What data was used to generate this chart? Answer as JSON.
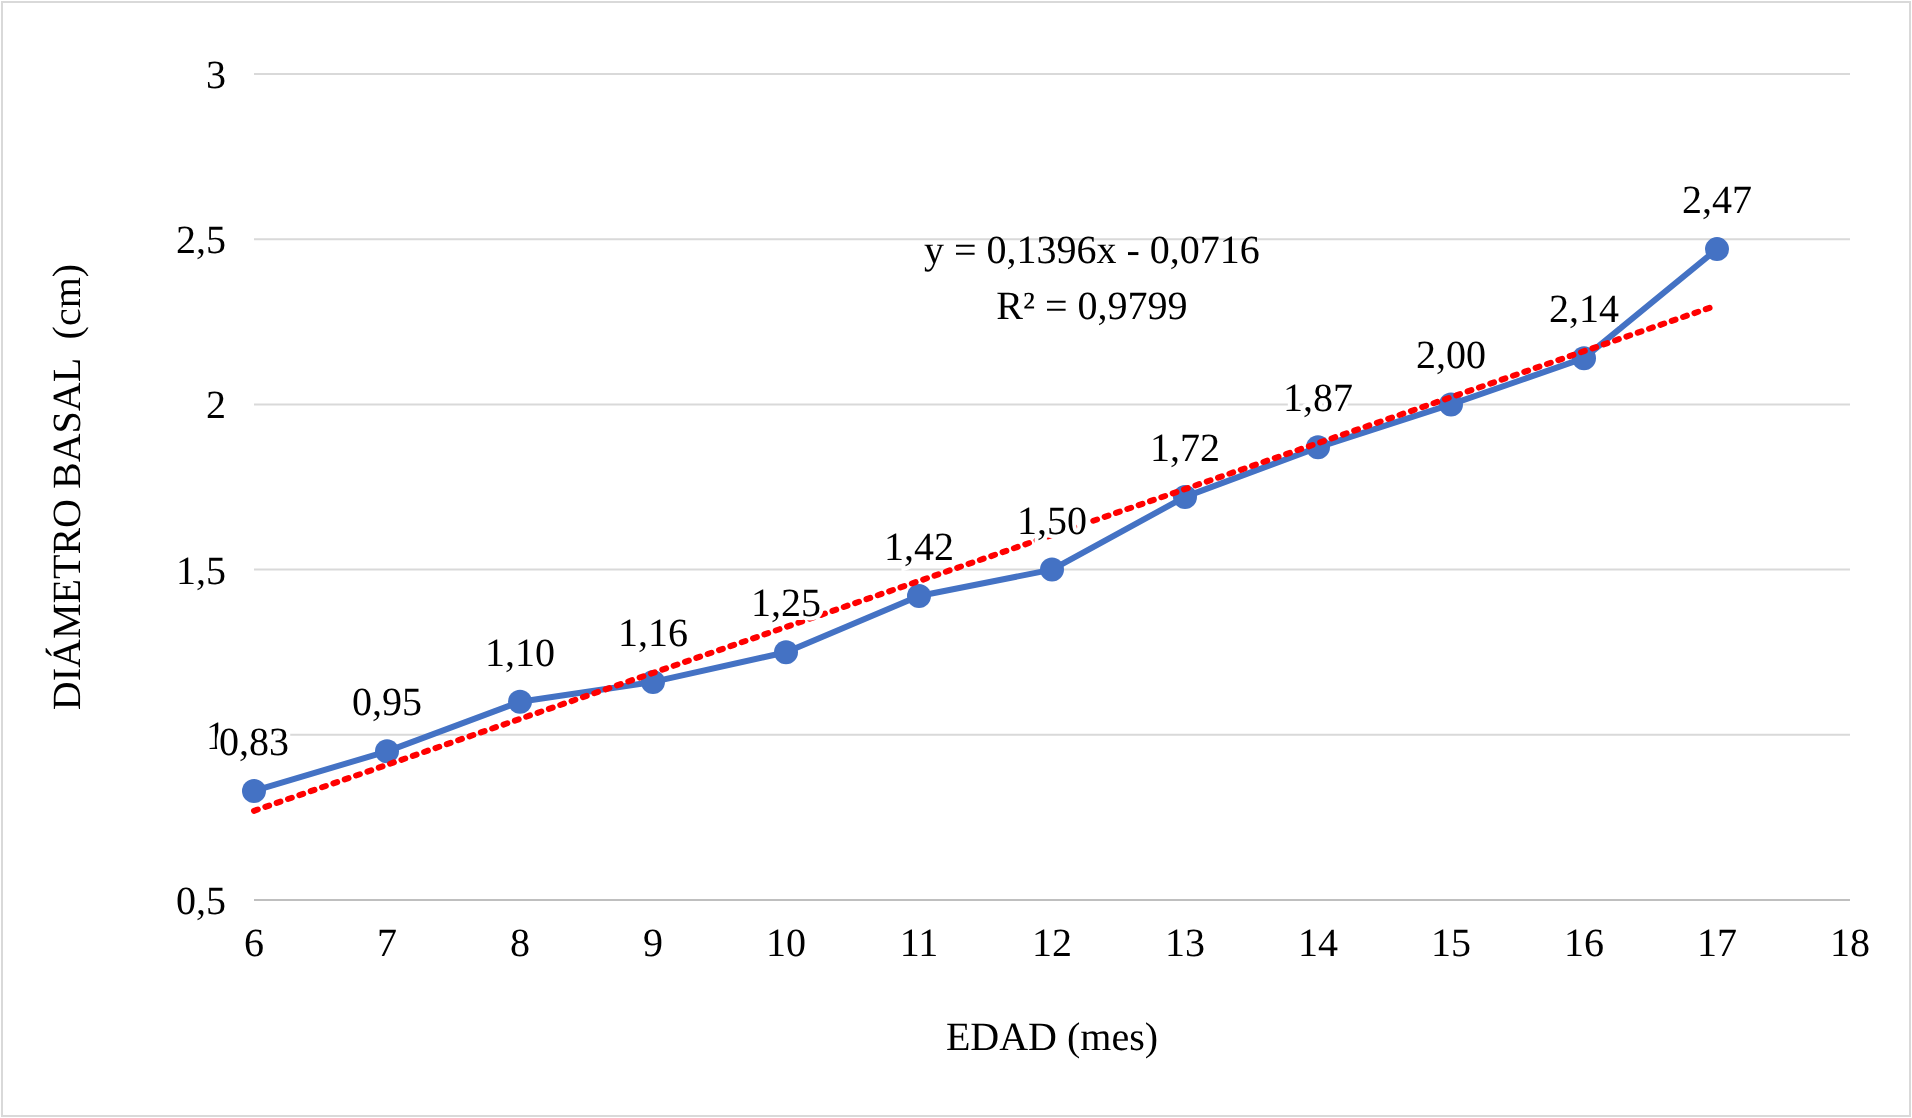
{
  "chart_data": {
    "type": "line",
    "xlabel": "EDAD (mes)",
    "ylabel": "DIÁMETRO BASAL  (cm)",
    "x": [
      6,
      7,
      8,
      9,
      10,
      11,
      12,
      13,
      14,
      15,
      16,
      17
    ],
    "series": [
      {
        "color": "#4472c4",
        "marker": "circle",
        "line_style": "solid",
        "values": [
          0.83,
          0.95,
          1.1,
          1.16,
          1.25,
          1.42,
          1.5,
          1.72,
          1.87,
          2.0,
          2.14,
          2.47
        ],
        "value_labels": [
          "0,83",
          "0,95",
          "1,10",
          "1,16",
          "1,25",
          "1,42",
          "1,50",
          "1,72",
          "1,87",
          "2,00",
          "2,14",
          "2,47"
        ]
      },
      {
        "type": "line",
        "color": "#ff0000",
        "marker": "none",
        "line_style": "dotted",
        "x": [
          6,
          17
        ],
        "values": [
          0.77,
          2.3
        ]
      }
    ],
    "annotations": [
      "y = 0,1396x - 0,0716",
      "R² = 0,9799"
    ],
    "xlim": [
      6,
      18
    ],
    "xticks": [
      6,
      7,
      8,
      9,
      10,
      11,
      12,
      13,
      14,
      15,
      16,
      17,
      18
    ],
    "ylim": [
      0.5,
      3
    ],
    "yticks": [
      {
        "value": 0.5,
        "label": "0,5"
      },
      1,
      {
        "value": 1.5,
        "label": "1,5"
      },
      2,
      {
        "value": 2.5,
        "label": "2,5"
      },
      3
    ],
    "grid": "y"
  }
}
